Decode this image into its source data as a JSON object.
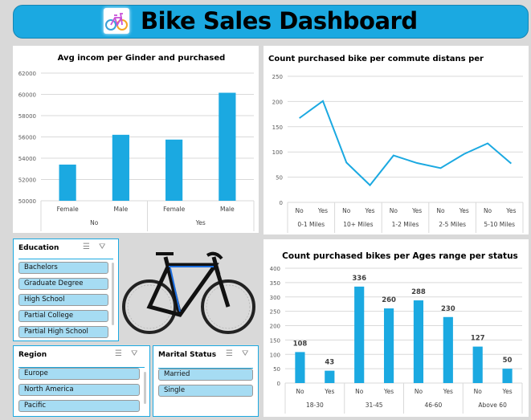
{
  "header": {
    "title": "Bike Sales Dashboard",
    "logo_icon": "bike-icon"
  },
  "colors": {
    "accent": "#1ba9e1",
    "item": "#a6dcf3",
    "background": "#d9d9d9"
  },
  "chart_data": [
    {
      "type": "bar",
      "title": "Avg incom per Ginder and purchased",
      "ylim": [
        50000,
        62000
      ],
      "yticks": [
        50000,
        52000,
        54000,
        56000,
        58000,
        60000,
        62000
      ],
      "groups": [
        "No",
        "Yes"
      ],
      "categories": [
        "Female",
        "Male",
        "Female",
        "Male"
      ],
      "values": [
        53400,
        56200,
        55750,
        60150
      ],
      "grid": true
    },
    {
      "type": "line",
      "title": "Count purchased bike per commute distans per",
      "ylim": [
        0,
        250
      ],
      "yticks": [
        0,
        50,
        100,
        150,
        200,
        250
      ],
      "groups": [
        "0-1 Miles",
        "10+ Miles",
        "1-2 Miles",
        "2-5 Miles",
        "5-10 Miles"
      ],
      "categories": [
        "No",
        "Yes",
        "No",
        "Yes",
        "No",
        "Yes",
        "No",
        "Yes",
        "No",
        "Yes"
      ],
      "values": [
        167,
        201,
        79,
        34,
        93,
        78,
        68,
        96,
        117,
        77
      ],
      "grid": true
    },
    {
      "type": "bar",
      "title": "Count purchased bikes per Ages range per status",
      "ylim": [
        0,
        400
      ],
      "yticks": [
        0,
        50,
        100,
        150,
        200,
        250,
        300,
        350,
        400
      ],
      "groups": [
        "18-30",
        "31-45",
        "46-60",
        "Above 60"
      ],
      "categories": [
        "No",
        "Yes",
        "No",
        "Yes",
        "No",
        "Yes",
        "No",
        "Yes"
      ],
      "values": [
        108,
        43,
        336,
        260,
        288,
        230,
        127,
        50
      ],
      "data_labels": [
        "108",
        "43",
        "336",
        "260",
        "288",
        "230",
        "127",
        "50"
      ],
      "grid": true
    }
  ],
  "slicers": {
    "education": {
      "title": "Education",
      "items": [
        "Bachelors",
        "Graduate Degree",
        "High School",
        "Partial College",
        "Partial High School"
      ]
    },
    "region": {
      "title": "Region",
      "items": [
        "Europe",
        "North America",
        "Pacific"
      ]
    },
    "marital": {
      "title": "Marital Status",
      "items": [
        "Married",
        "Single"
      ]
    },
    "multi_select_icon": "multi-select-icon",
    "clear_filter_icon": "clear-filter-icon"
  }
}
